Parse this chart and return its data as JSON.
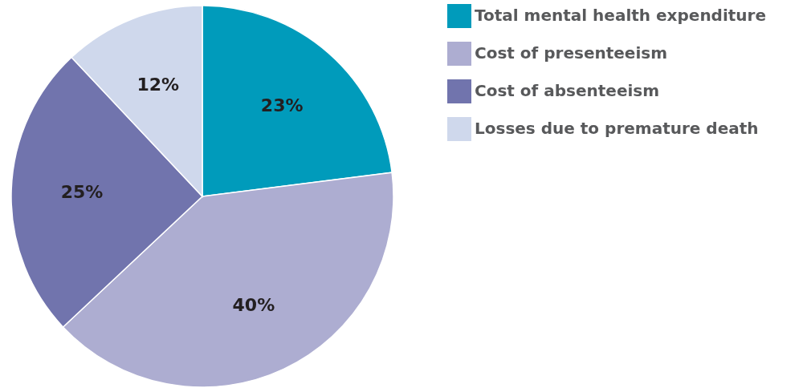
{
  "chart_data": {
    "type": "pie",
    "categories": [
      "Total mental health expenditure",
      "Cost of presenteeism",
      "Cost of absenteeism",
      "Losses due to premature death"
    ],
    "values": [
      23,
      40,
      25,
      12
    ],
    "colors": [
      "#009bbb",
      "#adadd1",
      "#7174ad",
      "#cfd8ec"
    ],
    "value_labels": [
      "23%",
      "40%",
      "25%",
      "12%"
    ],
    "legend": "right"
  }
}
